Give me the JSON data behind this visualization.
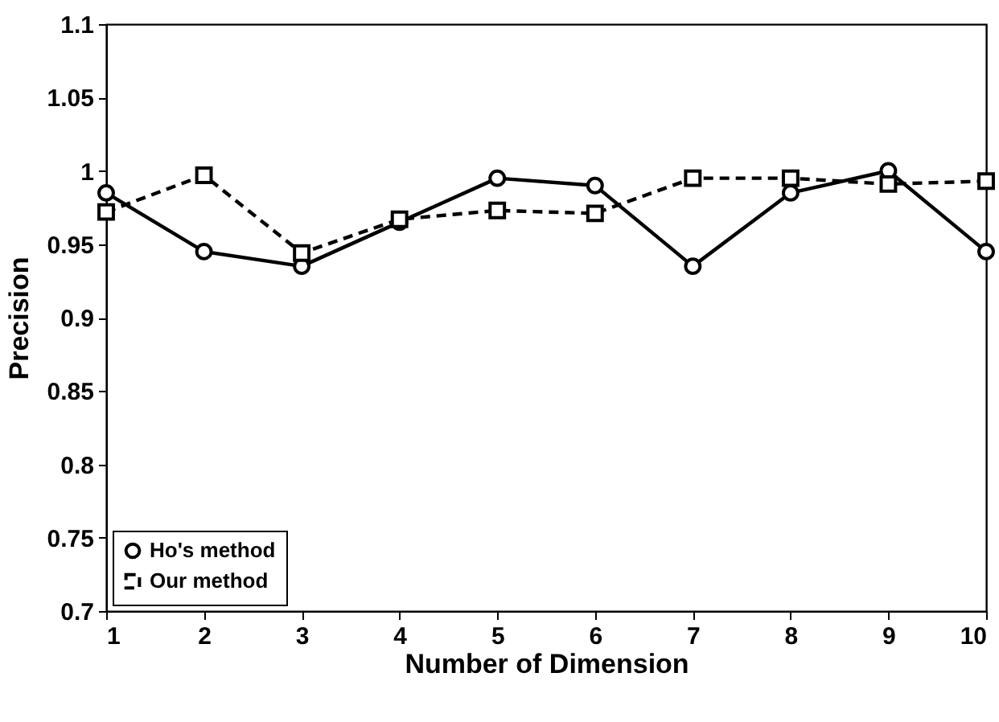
{
  "chart_data": {
    "type": "line",
    "xlabel": "Number of Dimension",
    "ylabel": "Precision",
    "x": [
      1,
      2,
      3,
      4,
      5,
      6,
      7,
      8,
      9,
      10
    ],
    "series": [
      {
        "name": "Ho's method",
        "color": "#000000",
        "marker": "circle",
        "line_style": "solid",
        "values": [
          0.985,
          0.945,
          0.935,
          0.965,
          0.995,
          0.99,
          0.935,
          0.985,
          1.0,
          0.945
        ]
      },
      {
        "name": "Our method",
        "color": "#000000",
        "marker": "square",
        "line_style": "dashed",
        "values": [
          0.972,
          0.997,
          0.944,
          0.967,
          0.973,
          0.971,
          0.995,
          0.995,
          0.991,
          0.993
        ]
      }
    ],
    "xlim": [
      1,
      10
    ],
    "xticks": [
      1,
      2,
      3,
      4,
      5,
      6,
      7,
      8,
      9,
      10
    ],
    "ylim": [
      0.7,
      1.1
    ],
    "yticks": [
      0.7,
      0.75,
      0.8,
      0.85,
      0.9,
      0.95,
      1,
      1.05,
      1.1
    ],
    "grid": false,
    "legend": "bottom left"
  }
}
